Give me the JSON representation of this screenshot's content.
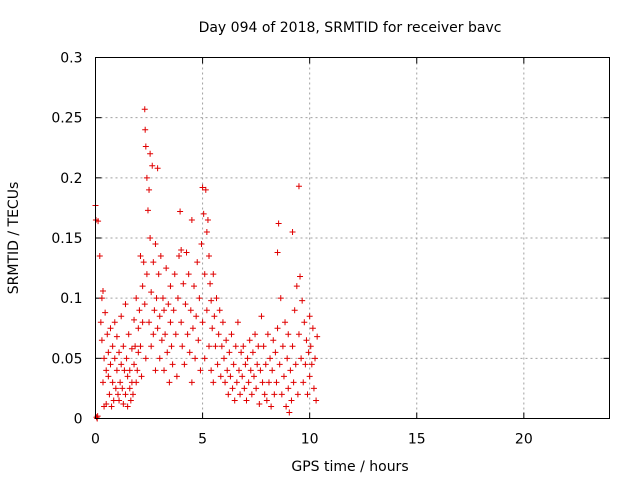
{
  "chart_data": {
    "type": "scatter",
    "title": "Day 094 of 2018, SRMTID for receiver bavc",
    "xlabel": "GPS time / hours",
    "ylabel": "SRMTID / TECUs",
    "xlim": [
      0,
      24
    ],
    "ylim": [
      0,
      0.3
    ],
    "xticks": [
      0,
      5,
      10,
      15,
      20
    ],
    "xtick_labels": [
      "0",
      "5",
      "10",
      "15",
      "20"
    ],
    "yticks": [
      0,
      0.05,
      0.1,
      0.15,
      0.2,
      0.25,
      0.3
    ],
    "ytick_labels": [
      "0",
      "0.05",
      "0.1",
      "0.15",
      "0.2",
      "0.25",
      "0.3"
    ],
    "grid": true,
    "marker": "+",
    "color": "#e00000",
    "series": [
      {
        "name": "SRMTID",
        "points": [
          [
            0.0,
            0.177
          ],
          [
            0.02,
            0.165
          ],
          [
            0.05,
            0.001
          ],
          [
            0.08,
            0.0
          ],
          [
            0.1,
            0.002
          ],
          [
            0.12,
            0.164
          ],
          [
            0.2,
            0.135
          ],
          [
            0.25,
            0.08
          ],
          [
            0.3,
            0.1
          ],
          [
            0.3,
            0.065
          ],
          [
            0.35,
            0.106
          ],
          [
            0.35,
            0.03
          ],
          [
            0.4,
            0.01
          ],
          [
            0.4,
            0.05
          ],
          [
            0.45,
            0.088
          ],
          [
            0.5,
            0.04
          ],
          [
            0.5,
            0.012
          ],
          [
            0.55,
            0.07
          ],
          [
            0.6,
            0.035
          ],
          [
            0.6,
            0.055
          ],
          [
            0.65,
            0.02
          ],
          [
            0.7,
            0.045
          ],
          [
            0.7,
            0.075
          ],
          [
            0.75,
            0.01
          ],
          [
            0.8,
            0.03
          ],
          [
            0.8,
            0.06
          ],
          [
            0.85,
            0.015
          ],
          [
            0.9,
            0.05
          ],
          [
            0.9,
            0.08
          ],
          [
            0.95,
            0.025
          ],
          [
            1.0,
            0.04
          ],
          [
            1.0,
            0.068
          ],
          [
            1.05,
            0.02
          ],
          [
            1.1,
            0.015
          ],
          [
            1.1,
            0.055
          ],
          [
            1.15,
            0.03
          ],
          [
            1.2,
            0.045
          ],
          [
            1.2,
            0.085
          ],
          [
            1.25,
            0.025
          ],
          [
            1.3,
            0.012
          ],
          [
            1.3,
            0.06
          ],
          [
            1.35,
            0.04
          ],
          [
            1.4,
            0.02
          ],
          [
            1.4,
            0.095
          ],
          [
            1.45,
            0.05
          ],
          [
            1.5,
            0.01
          ],
          [
            1.5,
            0.035
          ],
          [
            1.55,
            0.07
          ],
          [
            1.6,
            0.025
          ],
          [
            1.6,
            0.04
          ],
          [
            1.65,
            0.015
          ],
          [
            1.7,
            0.058
          ],
          [
            1.7,
            0.03
          ],
          [
            1.75,
            0.02
          ],
          [
            1.8,
            0.045
          ],
          [
            1.8,
            0.082
          ],
          [
            1.85,
            0.06
          ],
          [
            1.9,
            0.03
          ],
          [
            1.9,
            0.1
          ],
          [
            1.95,
            0.04
          ],
          [
            2.0,
            0.055
          ],
          [
            2.0,
            0.075
          ],
          [
            2.05,
            0.09
          ],
          [
            2.1,
            0.135
          ],
          [
            2.1,
            0.06
          ],
          [
            2.15,
            0.035
          ],
          [
            2.2,
            0.11
          ],
          [
            2.2,
            0.08
          ],
          [
            2.25,
            0.13
          ],
          [
            2.3,
            0.257
          ],
          [
            2.3,
            0.095
          ],
          [
            2.32,
            0.24
          ],
          [
            2.35,
            0.226
          ],
          [
            2.35,
            0.05
          ],
          [
            2.4,
            0.2
          ],
          [
            2.4,
            0.12
          ],
          [
            2.45,
            0.173
          ],
          [
            2.5,
            0.19
          ],
          [
            2.5,
            0.08
          ],
          [
            2.55,
            0.22
          ],
          [
            2.55,
            0.15
          ],
          [
            2.6,
            0.105
          ],
          [
            2.6,
            0.06
          ],
          [
            2.65,
            0.21
          ],
          [
            2.7,
            0.13
          ],
          [
            2.7,
            0.07
          ],
          [
            2.75,
            0.09
          ],
          [
            2.8,
            0.145
          ],
          [
            2.8,
            0.04
          ],
          [
            2.85,
            0.1
          ],
          [
            2.9,
            0.208
          ],
          [
            2.9,
            0.075
          ],
          [
            2.95,
            0.12
          ],
          [
            3.0,
            0.085
          ],
          [
            3.0,
            0.05
          ],
          [
            3.05,
            0.135
          ],
          [
            3.1,
            0.065
          ],
          [
            3.15,
            0.1
          ],
          [
            3.2,
            0.04
          ],
          [
            3.2,
            0.09
          ],
          [
            3.25,
            0.07
          ],
          [
            3.3,
            0.125
          ],
          [
            3.35,
            0.055
          ],
          [
            3.4,
            0.095
          ],
          [
            3.45,
            0.03
          ],
          [
            3.5,
            0.08
          ],
          [
            3.5,
            0.11
          ],
          [
            3.55,
            0.06
          ],
          [
            3.6,
            0.045
          ],
          [
            3.65,
            0.09
          ],
          [
            3.7,
            0.12
          ],
          [
            3.75,
            0.07
          ],
          [
            3.8,
            0.035
          ],
          [
            3.85,
            0.1
          ],
          [
            3.9,
            0.135
          ],
          [
            3.95,
            0.172
          ],
          [
            4.0,
            0.14
          ],
          [
            4.0,
            0.08
          ],
          [
            4.05,
            0.06
          ],
          [
            4.1,
            0.112
          ],
          [
            4.15,
            0.045
          ],
          [
            4.2,
            0.095
          ],
          [
            4.25,
            0.138
          ],
          [
            4.3,
            0.07
          ],
          [
            4.35,
            0.12
          ],
          [
            4.4,
            0.055
          ],
          [
            4.45,
            0.09
          ],
          [
            4.5,
            0.165
          ],
          [
            4.5,
            0.03
          ],
          [
            4.55,
            0.075
          ],
          [
            4.6,
            0.11
          ],
          [
            4.65,
            0.05
          ],
          [
            4.7,
            0.085
          ],
          [
            4.75,
            0.13
          ],
          [
            4.8,
            0.065
          ],
          [
            4.85,
            0.1
          ],
          [
            4.9,
            0.04
          ],
          [
            4.95,
            0.145
          ],
          [
            5.0,
            0.192
          ],
          [
            5.0,
            0.08
          ],
          [
            5.05,
            0.17
          ],
          [
            5.1,
            0.12
          ],
          [
            5.1,
            0.05
          ],
          [
            5.15,
            0.19
          ],
          [
            5.2,
            0.155
          ],
          [
            5.2,
            0.09
          ],
          [
            5.25,
            0.165
          ],
          [
            5.3,
            0.135
          ],
          [
            5.3,
            0.06
          ],
          [
            5.35,
            0.112
          ],
          [
            5.4,
            0.098
          ],
          [
            5.4,
            0.04
          ],
          [
            5.45,
            0.075
          ],
          [
            5.5,
            0.12
          ],
          [
            5.5,
            0.03
          ],
          [
            5.55,
            0.085
          ],
          [
            5.6,
            0.06
          ],
          [
            5.65,
            0.1
          ],
          [
            5.7,
            0.045
          ],
          [
            5.75,
            0.07
          ],
          [
            5.8,
            0.09
          ],
          [
            5.85,
            0.035
          ],
          [
            5.9,
            0.06
          ],
          [
            5.95,
            0.08
          ],
          [
            6.0,
            0.05
          ],
          [
            6.05,
            0.03
          ],
          [
            6.1,
            0.065
          ],
          [
            6.15,
            0.04
          ],
          [
            6.2,
            0.02
          ],
          [
            6.25,
            0.055
          ],
          [
            6.3,
            0.035
          ],
          [
            6.35,
            0.07
          ],
          [
            6.4,
            0.025
          ],
          [
            6.45,
            0.045
          ],
          [
            6.5,
            0.015
          ],
          [
            6.55,
            0.06
          ],
          [
            6.6,
            0.03
          ],
          [
            6.65,
            0.08
          ],
          [
            6.7,
            0.04
          ],
          [
            6.75,
            0.02
          ],
          [
            6.8,
            0.055
          ],
          [
            6.85,
            0.035
          ],
          [
            6.9,
            0.06
          ],
          [
            6.95,
            0.025
          ],
          [
            7.0,
            0.045
          ],
          [
            7.05,
            0.015
          ],
          [
            7.1,
            0.05
          ],
          [
            7.15,
            0.03
          ],
          [
            7.2,
            0.065
          ],
          [
            7.25,
            0.04
          ],
          [
            7.3,
            0.02
          ],
          [
            7.35,
            0.055
          ],
          [
            7.4,
            0.035
          ],
          [
            7.45,
            0.07
          ],
          [
            7.5,
            0.025
          ],
          [
            7.55,
            0.045
          ],
          [
            7.6,
            0.06
          ],
          [
            7.65,
            0.012
          ],
          [
            7.7,
            0.04
          ],
          [
            7.75,
            0.085
          ],
          [
            7.8,
            0.03
          ],
          [
            7.85,
            0.06
          ],
          [
            7.9,
            0.02
          ],
          [
            7.95,
            0.045
          ],
          [
            8.0,
            0.015
          ],
          [
            8.05,
            0.07
          ],
          [
            8.1,
            0.03
          ],
          [
            8.15,
            0.05
          ],
          [
            8.2,
            0.01
          ],
          [
            8.25,
            0.04
          ],
          [
            8.3,
            0.065
          ],
          [
            8.35,
            0.02
          ],
          [
            8.4,
            0.055
          ],
          [
            8.45,
            0.03
          ],
          [
            8.5,
            0.138
          ],
          [
            8.5,
            0.075
          ],
          [
            8.55,
            0.162
          ],
          [
            8.6,
            0.045
          ],
          [
            8.65,
            0.1
          ],
          [
            8.7,
            0.02
          ],
          [
            8.75,
            0.06
          ],
          [
            8.8,
            0.035
          ],
          [
            8.85,
            0.08
          ],
          [
            8.9,
            0.01
          ],
          [
            8.95,
            0.05
          ],
          [
            9.0,
            0.025
          ],
          [
            9.0,
            0.07
          ],
          [
            9.05,
            0.005
          ],
          [
            9.1,
            0.04
          ],
          [
            9.15,
            0.015
          ],
          [
            9.2,
            0.155
          ],
          [
            9.2,
            0.06
          ],
          [
            9.25,
            0.03
          ],
          [
            9.3,
            0.09
          ],
          [
            9.35,
            0.045
          ],
          [
            9.4,
            0.11
          ],
          [
            9.45,
            0.02
          ],
          [
            9.5,
            0.193
          ],
          [
            9.5,
            0.07
          ],
          [
            9.55,
            0.118
          ],
          [
            9.6,
            0.05
          ],
          [
            9.65,
            0.098
          ],
          [
            9.7,
            0.03
          ],
          [
            9.75,
            0.08
          ],
          [
            9.8,
            0.045
          ],
          [
            9.85,
            0.065
          ],
          [
            9.9,
            0.02
          ],
          [
            9.95,
            0.055
          ],
          [
            10.0,
            0.085
          ],
          [
            10.0,
            0.035
          ],
          [
            10.05,
            0.06
          ],
          [
            10.1,
            0.045
          ],
          [
            10.15,
            0.075
          ],
          [
            10.2,
            0.025
          ],
          [
            10.25,
            0.05
          ],
          [
            10.3,
            0.015
          ],
          [
            10.35,
            0.068
          ]
        ]
      }
    ]
  }
}
